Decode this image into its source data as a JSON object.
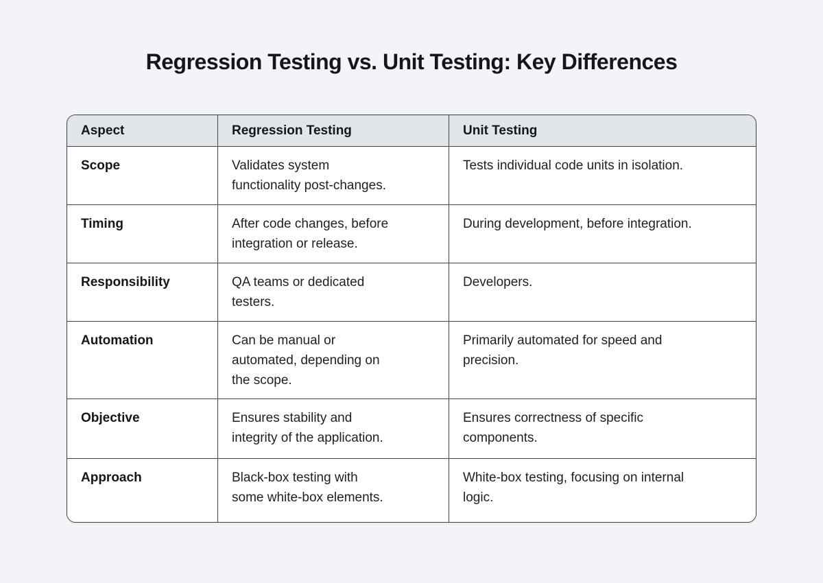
{
  "title": "Regression Testing vs. Unit Testing: Key Differences",
  "colors": {
    "page_bg": "#f2f4f7",
    "header_bg": "#e1e4e8",
    "border": "#3f4347",
    "text": "#1d1f22"
  },
  "table": {
    "headers": [
      "Aspect",
      "Regression Testing",
      "Unit Testing"
    ],
    "rows": [
      {
        "aspect": "Scope",
        "regression": "Validates system functionality post-changes.",
        "unit": "Tests individual code units in isolation."
      },
      {
        "aspect": "Timing",
        "regression": "After code changes, before integration or release.",
        "unit": "During development, before integration."
      },
      {
        "aspect": "Responsibility",
        "regression": "QA teams or dedicated testers.",
        "unit": "Developers."
      },
      {
        "aspect": "Automation",
        "regression": "Can be manual or automated, depending on the scope.",
        "unit": "Primarily automated for speed and precision."
      },
      {
        "aspect": "Objective",
        "regression": "Ensures stability and integrity of the application.",
        "unit": "Ensures correctness of specific components."
      },
      {
        "aspect": "Approach",
        "regression": "Black-box testing with some white-box elements.",
        "unit": "White-box testing, focusing on internal logic."
      }
    ]
  }
}
